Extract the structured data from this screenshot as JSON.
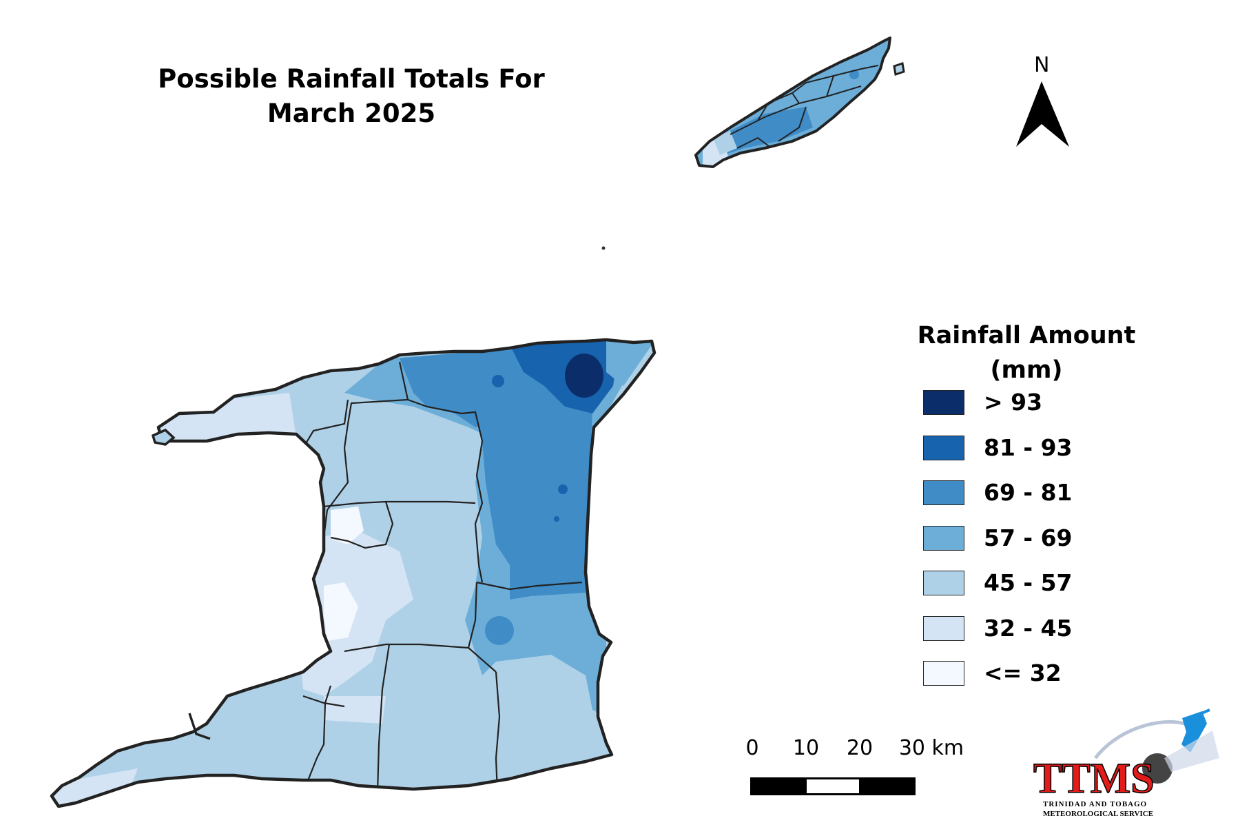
{
  "title_line1": "Possible Rainfall Totals For",
  "title_line2": "March 2025",
  "north_arrow": {
    "label": "N",
    "icon": "north-arrow-icon"
  },
  "legend": {
    "title_line1": "Rainfall Amount",
    "title_line2": "(mm)",
    "items": [
      {
        "label": "> 93",
        "color": "#0b2e6b"
      },
      {
        "label": "81 - 93",
        "color": "#1763ad"
      },
      {
        "label": "69 - 81",
        "color": "#3f8cc7"
      },
      {
        "label": "57 - 69",
        "color": "#6caed8"
      },
      {
        "label": "45 - 57",
        "color": "#afd1e7"
      },
      {
        "label": "32 - 45",
        "color": "#d4e4f4"
      },
      {
        "label": "<= 32",
        "color": "#f4f9ff"
      }
    ]
  },
  "scale_bar": {
    "ticks": [
      "0",
      "10",
      "20",
      "30 km"
    ]
  },
  "logo": {
    "text": "TTMS",
    "subtitle_line1": "TRINIDAD AND TOBAGO",
    "subtitle_line2": "METEOROLOGICAL SERVICE",
    "color": "#e21b1b"
  }
}
